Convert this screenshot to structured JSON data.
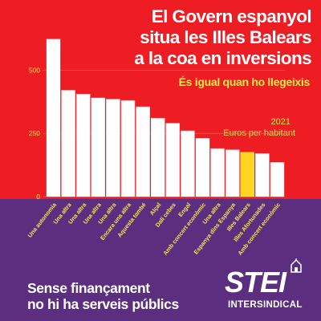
{
  "poster": {
    "title_lines": [
      "El Govern espanyol",
      "situa les Illes Balears",
      "a la coa en inversions"
    ],
    "subtitle": "És igual quan ho llegeixis",
    "year": "2021",
    "unit": "Euros per habitant",
    "slogan_lines": [
      "Sense finançament",
      "no hi ha serveis públics"
    ],
    "logo": {
      "name": "STEI",
      "sub": "INTERSINDICAL",
      "icon": "house-icon"
    }
  },
  "colors": {
    "background": "#ee1d23",
    "bottom": "#5c2e7f",
    "bar": "#ffffff",
    "highlight": "#fed523",
    "accent": "#f6e84a"
  },
  "chart_data": {
    "type": "bar",
    "title": "",
    "xlabel": "",
    "ylabel": "",
    "yticks": [
      0,
      250,
      500
    ],
    "ylim": [
      0,
      650
    ],
    "categories": [
      "Una autonomia",
      "Una altra",
      "Una altra",
      "Una altra",
      "Una altra",
      "Encara una altra",
      "Aquesta també",
      "Alçal",
      "Dalí cebes",
      "Engal",
      "Amb concert econòmic",
      "Una altra",
      "Espanya dins Espanya",
      "Illes Balears",
      "Illes Afortunades",
      "Amb concert econòmic"
    ],
    "values": [
      622,
      420,
      405,
      390,
      385,
      380,
      355,
      310,
      290,
      260,
      230,
      190,
      185,
      175,
      170,
      135
    ],
    "highlight_index": 13
  }
}
